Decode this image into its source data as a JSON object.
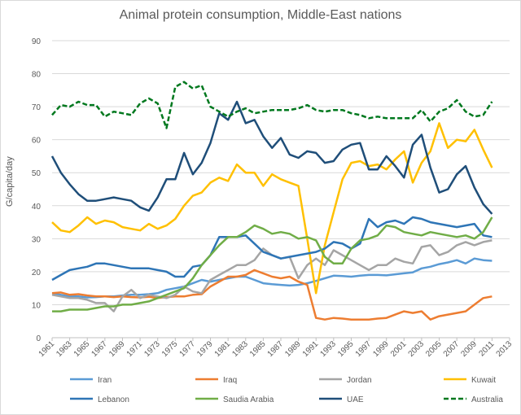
{
  "chart_data": {
    "type": "line",
    "title": "Animal protein consumption,  Middle-East nations",
    "ylabel": "G/capita/day",
    "xlabel": "",
    "ylim": [
      0,
      90
    ],
    "yticks": [
      0,
      10,
      20,
      30,
      40,
      50,
      60,
      70,
      80,
      90
    ],
    "xlim": [
      1961,
      2013
    ],
    "xticks": [
      1961,
      1963,
      1965,
      1967,
      1969,
      1971,
      1973,
      1975,
      1977,
      1979,
      1981,
      1983,
      1985,
      1987,
      1989,
      1991,
      1993,
      1995,
      1997,
      1999,
      2001,
      2003,
      2005,
      2007,
      2009,
      2011,
      2013
    ],
    "grid": true,
    "legend_position": "bottom",
    "x": [
      1961,
      1962,
      1963,
      1964,
      1965,
      1966,
      1967,
      1968,
      1969,
      1970,
      1971,
      1972,
      1973,
      1974,
      1975,
      1976,
      1977,
      1978,
      1979,
      1980,
      1981,
      1982,
      1983,
      1984,
      1985,
      1986,
      1987,
      1988,
      1989,
      1990,
      1991,
      1992,
      1993,
      1994,
      1995,
      1996,
      1997,
      1998,
      1999,
      2000,
      2001,
      2002,
      2003,
      2004,
      2005,
      2006,
      2007,
      2008,
      2009,
      2010,
      2011
    ],
    "series": [
      {
        "name": "Iran",
        "color": "#5b9bd5",
        "dash": "solid",
        "values": [
          13.5,
          13.0,
          12.5,
          12.5,
          12.2,
          12.3,
          12.5,
          12.5,
          12.8,
          13.0,
          13.0,
          13.2,
          13.5,
          14.5,
          15.0,
          15.5,
          16.5,
          17.5,
          17.0,
          17.5,
          18.0,
          18.5,
          18.5,
          17.5,
          16.5,
          16.2,
          16.0,
          15.8,
          16.0,
          16.5,
          17.2,
          18.0,
          18.8,
          18.7,
          18.5,
          18.8,
          19.0,
          19.0,
          18.9,
          19.2,
          19.5,
          19.8,
          21.0,
          21.5,
          22.3,
          22.8,
          23.5,
          22.5,
          24.0,
          23.5,
          23.3
        ]
      },
      {
        "name": "Iraq",
        "color": "#ed7d31",
        "dash": "solid",
        "values": [
          13.5,
          13.7,
          13.0,
          13.2,
          12.8,
          12.5,
          12.5,
          12.3,
          12.5,
          12.3,
          12.2,
          12.4,
          12.0,
          12.3,
          12.5,
          12.5,
          13.0,
          13.2,
          15.5,
          17.0,
          18.5,
          18.5,
          19.0,
          20.5,
          19.5,
          18.5,
          18.0,
          18.5,
          17.0,
          16.0,
          6.0,
          5.5,
          6.0,
          5.8,
          5.5,
          5.5,
          5.5,
          5.8,
          6.0,
          7.0,
          8.0,
          7.5,
          8.0,
          5.5,
          6.5,
          7.0,
          7.5,
          8.0,
          10.0,
          12.0,
          12.5
        ]
      },
      {
        "name": "Jordan",
        "color": "#a5a5a5",
        "dash": "solid",
        "values": [
          13.0,
          12.5,
          12.0,
          12.0,
          11.5,
          10.5,
          10.5,
          8.0,
          12.5,
          14.5,
          12.0,
          13.0,
          12.5,
          12.0,
          13.0,
          15.5,
          14.0,
          13.5,
          17.5,
          19.0,
          20.5,
          22.0,
          22.0,
          23.5,
          27.0,
          25.0,
          24.0,
          24.5,
          18.0,
          22.0,
          24.0,
          22.0,
          26.5,
          25.0,
          23.5,
          22.0,
          20.5,
          22.0,
          22.0,
          24.0,
          23.0,
          22.5,
          27.5,
          28.0,
          25.0,
          26.0,
          28.0,
          29.0,
          28.0,
          29.0,
          29.5
        ]
      },
      {
        "name": "Kuwait",
        "color": "#ffc000",
        "dash": "solid",
        "values": [
          35.0,
          32.5,
          32.0,
          34.0,
          36.5,
          34.5,
          35.5,
          35.0,
          33.5,
          33.0,
          32.5,
          34.5,
          33.0,
          34.0,
          36.0,
          40.0,
          43.0,
          44.0,
          47.0,
          48.5,
          47.5,
          52.5,
          50.0,
          50.0,
          46.0,
          49.5,
          48.0,
          47.0,
          46.0,
          30.0,
          13.5,
          28.0,
          38.0,
          48.0,
          53.0,
          53.5,
          52.0,
          52.5,
          51.0,
          54.0,
          56.5,
          47.0,
          53.0,
          56.5,
          65.0,
          57.5,
          60.0,
          59.5,
          63.0,
          57.0,
          51.5
        ]
      },
      {
        "name": "Lebanon",
        "color": "#2e75b6",
        "dash": "solid",
        "values": [
          17.5,
          19.0,
          20.5,
          21.0,
          21.5,
          22.5,
          22.5,
          22.0,
          21.5,
          21.0,
          21.0,
          21.0,
          20.5,
          20.0,
          18.5,
          18.5,
          21.5,
          22.0,
          25.0,
          30.5,
          30.5,
          30.5,
          31.0,
          28.5,
          26.0,
          25.0,
          24.0,
          24.5,
          25.0,
          25.5,
          26.0,
          27.0,
          29.0,
          28.5,
          27.0,
          28.5,
          36.0,
          33.5,
          35.0,
          35.5,
          34.5,
          36.5,
          36.0,
          35.0,
          34.5,
          34.0,
          33.5,
          34.0,
          34.5,
          31.0,
          30.5
        ]
      },
      {
        "name": "Saudia Arabia",
        "color": "#70ad47",
        "dash": "solid",
        "values": [
          8.0,
          8.0,
          8.5,
          8.5,
          8.5,
          9.0,
          9.5,
          9.5,
          10.0,
          10.0,
          10.5,
          11.0,
          12.0,
          13.0,
          14.0,
          15.0,
          18.0,
          22.0,
          25.0,
          28.0,
          30.5,
          30.5,
          32.0,
          34.0,
          33.0,
          31.5,
          32.0,
          31.5,
          30.0,
          30.5,
          29.5,
          24.5,
          22.5,
          22.5,
          27.0,
          29.5,
          30.0,
          31.0,
          34.0,
          33.5,
          32.0,
          31.5,
          31.0,
          32.0,
          31.5,
          31.0,
          30.5,
          31.0,
          30.0,
          32.0,
          36.5
        ]
      },
      {
        "name": "UAE",
        "color": "#1f4e79",
        "dash": "solid",
        "values": [
          55.0,
          50.0,
          46.5,
          43.5,
          41.5,
          41.5,
          42.0,
          42.5,
          42.0,
          41.5,
          39.5,
          38.5,
          42.5,
          48.0,
          48.0,
          56.0,
          49.5,
          53.0,
          59.0,
          68.0,
          66.0,
          71.5,
          65.0,
          66.0,
          61.0,
          57.5,
          60.5,
          55.5,
          54.5,
          56.5,
          56.0,
          53.0,
          53.5,
          57.0,
          58.5,
          59.0,
          51.0,
          51.0,
          55.0,
          52.0,
          48.5,
          58.5,
          61.5,
          51.5,
          44.0,
          45.0,
          49.5,
          52.0,
          45.5,
          40.5,
          37.5
        ]
      },
      {
        "name": "Australia",
        "color": "#00781e",
        "dash": "dashed",
        "values": [
          67.5,
          70.5,
          70.0,
          71.5,
          70.5,
          70.5,
          67.0,
          68.5,
          68.0,
          67.5,
          71.0,
          72.5,
          71.0,
          63.5,
          76.0,
          77.5,
          75.5,
          76.5,
          70.0,
          68.5,
          67.0,
          68.5,
          69.5,
          68.0,
          68.5,
          69.0,
          69.0,
          69.0,
          69.5,
          70.5,
          69.0,
          68.5,
          69.0,
          69.0,
          68.0,
          67.5,
          66.5,
          67.0,
          66.5,
          66.5,
          66.5,
          66.5,
          69.0,
          65.5,
          68.5,
          69.5,
          72.0,
          68.5,
          67.0,
          67.5,
          71.5
        ]
      }
    ]
  }
}
